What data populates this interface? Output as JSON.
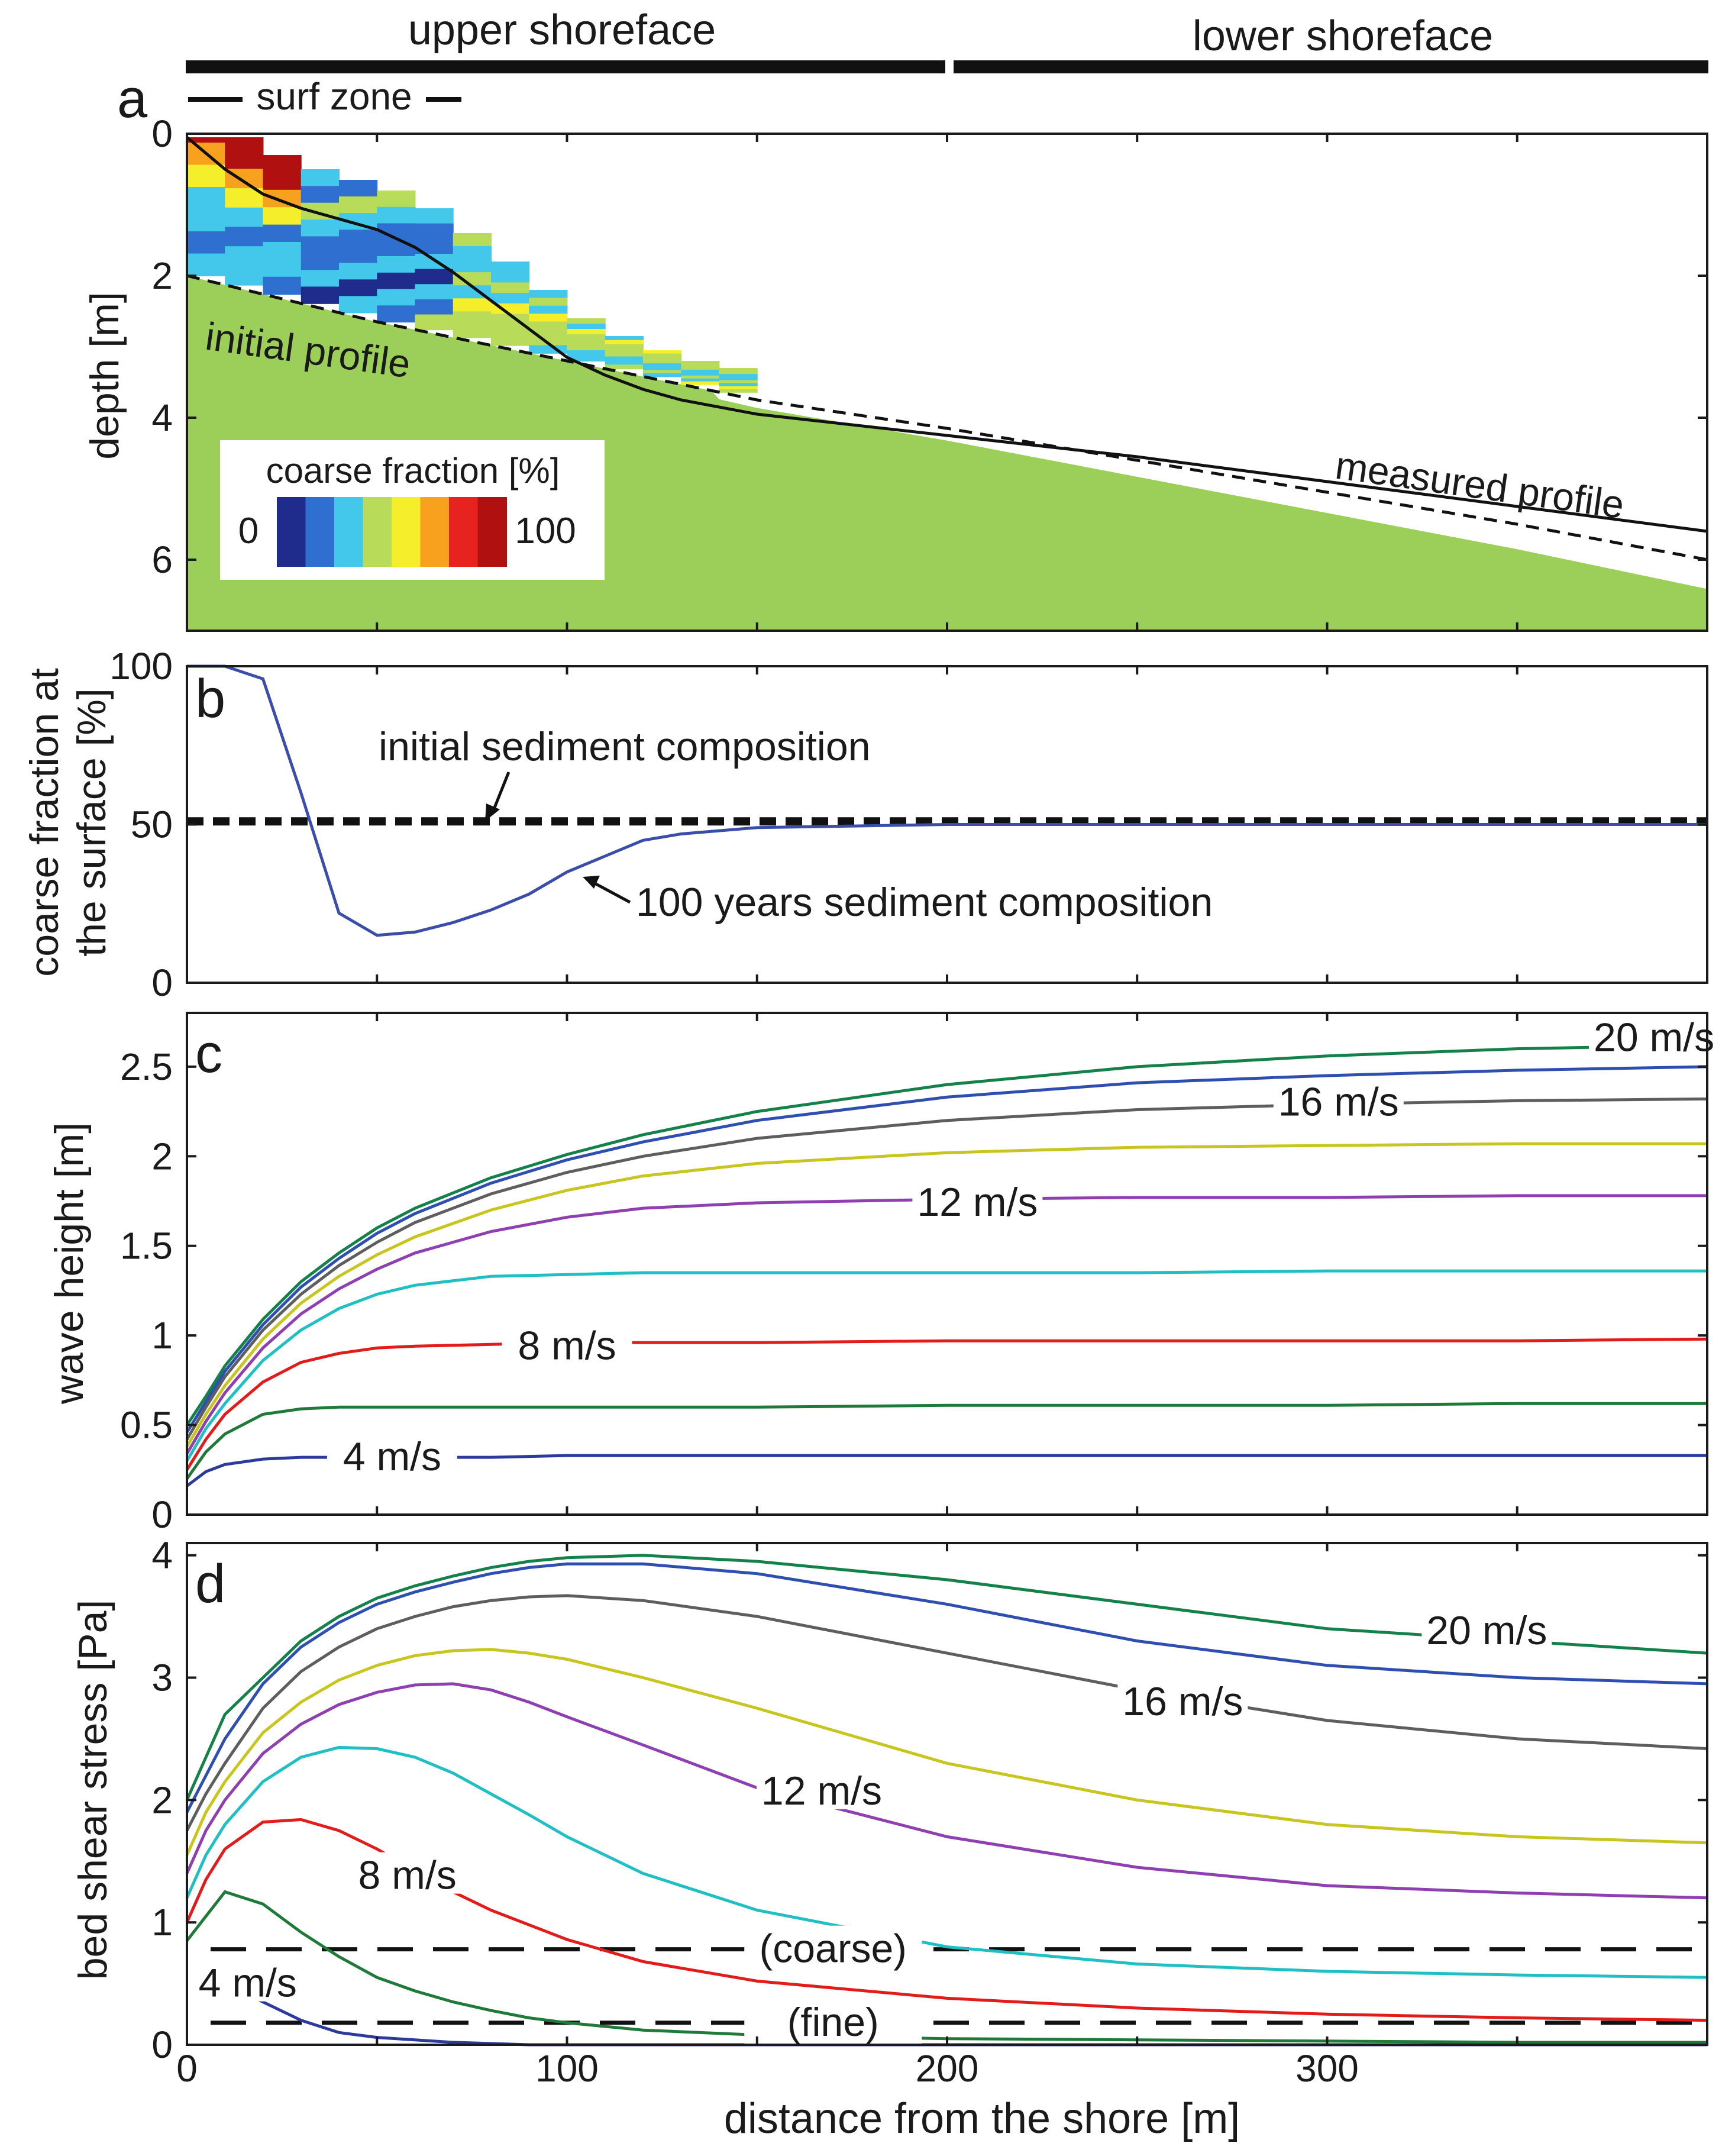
{
  "header": {
    "upper_label": "upper shoreface",
    "lower_label": "lower shoreface",
    "surf_label": "surf zone"
  },
  "xaxis": {
    "label": "distance from the shore [m]",
    "ticks": [
      "0",
      "100",
      "200",
      "300"
    ]
  },
  "chart_data": [
    {
      "panel": "a",
      "type": "area",
      "ylabel": "depth [m]",
      "xlim": [
        0,
        400
      ],
      "ylim": [
        0,
        7
      ],
      "y_inverted": true,
      "yticks": [
        "0",
        "2",
        "4",
        "6"
      ],
      "colorbar": {
        "title": "coarse fraction [%]",
        "min_label": "0",
        "max_label": "100",
        "colors": [
          "#1f2c8c",
          "#2f6fd0",
          "#43c7ea",
          "#b8dc5a",
          "#f4ef2a",
          "#f7a11e",
          "#e6231f",
          "#b01010"
        ]
      },
      "fill_color": "#9ccf5a",
      "series": [
        {
          "name": "initial profile",
          "style": "dashed",
          "x": [
            0,
            50,
            100,
            150,
            200,
            250,
            300,
            350,
            400
          ],
          "y": [
            2.0,
            2.65,
            3.2,
            3.75,
            4.15,
            4.6,
            5.05,
            5.5,
            6.0
          ]
        },
        {
          "name": "measured profile",
          "style": "solid",
          "x": [
            0,
            10,
            20,
            30,
            40,
            50,
            60,
            70,
            80,
            90,
            100,
            110,
            120,
            130,
            150,
            200,
            250,
            300,
            350,
            400
          ],
          "y": [
            0.05,
            0.5,
            0.85,
            1.05,
            1.2,
            1.35,
            1.6,
            1.95,
            2.35,
            2.75,
            3.15,
            3.4,
            3.6,
            3.75,
            3.95,
            4.25,
            4.55,
            4.9,
            5.25,
            5.6
          ]
        }
      ]
    },
    {
      "panel": "b",
      "type": "line",
      "ylabel": "coarse fraction at the surface [%]",
      "ylabel_line1": "coarse fraction at",
      "ylabel_line2": "the surface [%]",
      "xlim": [
        0,
        400
      ],
      "ylim": [
        0,
        100
      ],
      "yticks": [
        "0",
        "50",
        "100"
      ],
      "series": [
        {
          "name": "initial sediment composition",
          "style": "dashed",
          "x": [
            0,
            400
          ],
          "y": [
            51,
            51
          ]
        },
        {
          "name": "100 years sediment composition",
          "style": "solid",
          "x": [
            0,
            10,
            20,
            30,
            40,
            50,
            60,
            70,
            80,
            90,
            100,
            110,
            120,
            130,
            150,
            200,
            250,
            300,
            350,
            400
          ],
          "y": [
            100,
            100,
            96,
            60,
            22,
            15,
            16,
            19,
            23,
            28,
            35,
            40,
            45,
            47,
            49,
            50,
            50,
            50,
            50,
            50
          ]
        }
      ]
    },
    {
      "panel": "c",
      "type": "line",
      "ylabel": "wave height [m]",
      "xlim": [
        0,
        400
      ],
      "ylim": [
        0,
        2.8
      ],
      "yticks": [
        "0",
        "0.5",
        "1",
        "1.5",
        "2",
        "2.5"
      ],
      "x": [
        0,
        5,
        10,
        20,
        30,
        40,
        50,
        60,
        80,
        100,
        120,
        150,
        200,
        250,
        300,
        350,
        400
      ],
      "series": [
        {
          "color": "#2b3a9b",
          "y": [
            0.16,
            0.24,
            0.28,
            0.31,
            0.32,
            0.32,
            0.32,
            0.32,
            0.32,
            0.33,
            0.33,
            0.33,
            0.33,
            0.33,
            0.33,
            0.33,
            0.33
          ]
        },
        {
          "color": "#1f7a3a",
          "y": [
            0.2,
            0.35,
            0.45,
            0.56,
            0.59,
            0.6,
            0.6,
            0.6,
            0.6,
            0.6,
            0.6,
            0.6,
            0.61,
            0.61,
            0.61,
            0.62,
            0.62
          ]
        },
        {
          "color": "#e21b1b",
          "y": [
            0.25,
            0.42,
            0.56,
            0.74,
            0.85,
            0.9,
            0.93,
            0.94,
            0.95,
            0.96,
            0.96,
            0.96,
            0.97,
            0.97,
            0.97,
            0.97,
            0.98
          ]
        },
        {
          "color": "#1fbfc4",
          "y": [
            0.3,
            0.48,
            0.62,
            0.86,
            1.03,
            1.15,
            1.23,
            1.28,
            1.33,
            1.34,
            1.35,
            1.35,
            1.35,
            1.35,
            1.36,
            1.36,
            1.36
          ]
        },
        {
          "color": "#8e3fb0",
          "y": [
            0.34,
            0.52,
            0.68,
            0.93,
            1.12,
            1.26,
            1.37,
            1.46,
            1.58,
            1.66,
            1.71,
            1.74,
            1.76,
            1.77,
            1.77,
            1.78,
            1.78
          ]
        },
        {
          "color": "#c8c51f",
          "y": [
            0.38,
            0.56,
            0.72,
            0.98,
            1.18,
            1.33,
            1.45,
            1.55,
            1.7,
            1.81,
            1.89,
            1.96,
            2.02,
            2.05,
            2.06,
            2.07,
            2.07
          ]
        },
        {
          "color": "#5e5e5e",
          "y": [
            0.42,
            0.6,
            0.77,
            1.03,
            1.23,
            1.39,
            1.52,
            1.63,
            1.79,
            1.91,
            2.0,
            2.1,
            2.2,
            2.26,
            2.29,
            2.31,
            2.32
          ]
        },
        {
          "color": "#2f4fb0",
          "y": [
            0.46,
            0.63,
            0.8,
            1.06,
            1.27,
            1.43,
            1.57,
            1.68,
            1.85,
            1.98,
            2.08,
            2.2,
            2.33,
            2.41,
            2.45,
            2.48,
            2.5
          ]
        },
        {
          "color": "#14804a",
          "y": [
            0.5,
            0.66,
            0.83,
            1.09,
            1.3,
            1.46,
            1.6,
            1.71,
            1.88,
            2.01,
            2.12,
            2.25,
            2.4,
            2.5,
            2.56,
            2.6,
            2.62
          ]
        }
      ],
      "labels": [
        {
          "text": "4 m/s",
          "x": 54,
          "y": 0.32
        },
        {
          "text": "8 m/s",
          "x": 100,
          "y": 0.94
        },
        {
          "text": "12 m/s",
          "x": 208,
          "y": 1.74
        },
        {
          "text": "16 m/s",
          "x": 303,
          "y": 2.3
        },
        {
          "text": "20 m/s",
          "x": 386,
          "y": 2.66
        }
      ]
    },
    {
      "panel": "d",
      "type": "line",
      "ylabel": "bed shear stress [Pa]",
      "xlim": [
        0,
        400
      ],
      "ylim": [
        0,
        4.1
      ],
      "yticks": [
        "0",
        "1",
        "2",
        "3",
        "4"
      ],
      "x": [
        0,
        5,
        10,
        20,
        30,
        40,
        50,
        60,
        70,
        80,
        90,
        100,
        120,
        150,
        200,
        250,
        300,
        350,
        400
      ],
      "series": [
        {
          "color": "#2b3a9b",
          "y": [
            0.6,
            0.65,
            0.5,
            0.35,
            0.2,
            0.1,
            0.06,
            0.04,
            0.02,
            0.01,
            0.0,
            0.0,
            0.0,
            0.0,
            0.0,
            0.0,
            0.0,
            0.0,
            0.0
          ]
        },
        {
          "color": "#1f7a3a",
          "y": [
            0.85,
            1.05,
            1.25,
            1.15,
            0.92,
            0.72,
            0.55,
            0.44,
            0.35,
            0.28,
            0.22,
            0.18,
            0.12,
            0.08,
            0.05,
            0.04,
            0.03,
            0.02,
            0.02
          ]
        },
        {
          "color": "#e21b1b",
          "y": [
            1.0,
            1.35,
            1.6,
            1.82,
            1.84,
            1.75,
            1.6,
            1.42,
            1.25,
            1.1,
            0.98,
            0.86,
            0.68,
            0.52,
            0.38,
            0.3,
            0.25,
            0.22,
            0.2
          ]
        },
        {
          "color": "#1fbfc4",
          "y": [
            1.2,
            1.55,
            1.8,
            2.15,
            2.35,
            2.43,
            2.42,
            2.35,
            2.22,
            2.05,
            1.88,
            1.7,
            1.4,
            1.1,
            0.8,
            0.66,
            0.6,
            0.57,
            0.55
          ]
        },
        {
          "color": "#8e3fb0",
          "y": [
            1.4,
            1.75,
            2.0,
            2.38,
            2.62,
            2.78,
            2.88,
            2.94,
            2.95,
            2.9,
            2.8,
            2.68,
            2.45,
            2.1,
            1.7,
            1.45,
            1.3,
            1.24,
            1.2
          ]
        },
        {
          "color": "#c8c51f",
          "y": [
            1.55,
            1.9,
            2.15,
            2.55,
            2.8,
            2.98,
            3.1,
            3.18,
            3.22,
            3.23,
            3.2,
            3.15,
            3.0,
            2.75,
            2.3,
            2.0,
            1.8,
            1.7,
            1.65
          ]
        },
        {
          "color": "#5e5e5e",
          "y": [
            1.75,
            2.05,
            2.3,
            2.75,
            3.05,
            3.25,
            3.4,
            3.5,
            3.58,
            3.63,
            3.66,
            3.67,
            3.63,
            3.5,
            3.2,
            2.9,
            2.65,
            2.5,
            2.42
          ]
        },
        {
          "color": "#2f4fb0",
          "y": [
            1.9,
            2.2,
            2.5,
            2.95,
            3.25,
            3.45,
            3.6,
            3.7,
            3.78,
            3.85,
            3.9,
            3.93,
            3.93,
            3.85,
            3.6,
            3.3,
            3.1,
            3.0,
            2.95
          ]
        },
        {
          "color": "#14804a",
          "y": [
            2.0,
            2.35,
            2.7,
            3.0,
            3.3,
            3.5,
            3.65,
            3.75,
            3.83,
            3.9,
            3.95,
            3.98,
            4.0,
            3.95,
            3.8,
            3.6,
            3.4,
            3.3,
            3.2
          ]
        }
      ],
      "thresholds": [
        {
          "label": "(coarse)",
          "y": 0.78
        },
        {
          "label": "(fine)",
          "y": 0.18
        }
      ],
      "labels": [
        {
          "text": "4 m/s",
          "x": 16,
          "y": 0.5
        },
        {
          "text": "8 m/s",
          "x": 58,
          "y": 1.38
        },
        {
          "text": "12 m/s",
          "x": 167,
          "y": 2.07
        },
        {
          "text": "16 m/s",
          "x": 262,
          "y": 2.8
        },
        {
          "text": "20 m/s",
          "x": 342,
          "y": 3.38
        }
      ]
    }
  ]
}
